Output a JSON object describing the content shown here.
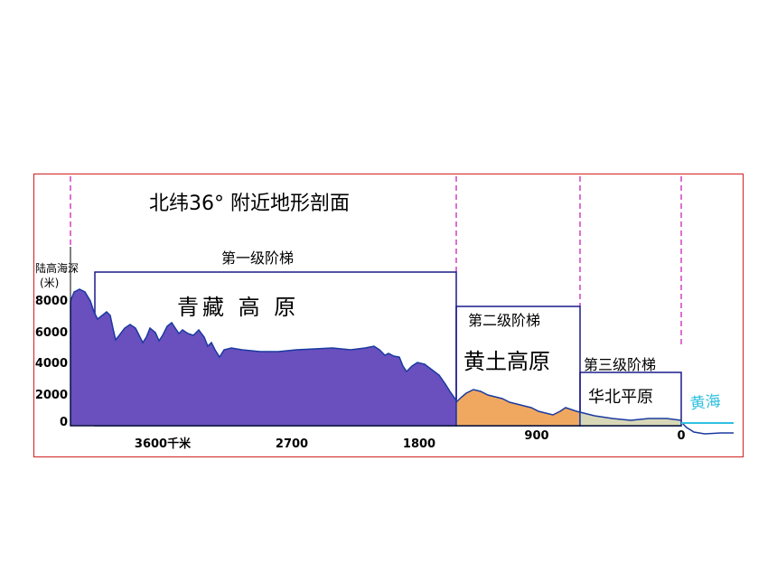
{
  "title": "北纬36° 附近地形剖面",
  "y_axis": {
    "label_line1": "陆高海深",
    "label_line2": "(米)",
    "ticks": [
      "8000",
      "6000",
      "4000",
      "2000",
      "0"
    ]
  },
  "x_axis": {
    "ticks": [
      "3600千米",
      "2700",
      "1800",
      "900",
      "0"
    ]
  },
  "steps": [
    {
      "step_label": "第一级阶梯",
      "region_label": "青藏 高 原",
      "color": "#6a4fbf"
    },
    {
      "step_label": "第二级阶梯",
      "region_label": "黄土高原",
      "color": "#f0a860"
    },
    {
      "step_label": "第三级阶梯",
      "region_label": "华北平原",
      "color": "#d8d8b8"
    }
  ],
  "sea": {
    "label": "黄海",
    "color": "#30c0e0"
  },
  "colors": {
    "frame": "#d02020",
    "box": "#1a1a8a",
    "divider": "#d040c0",
    "axis": "#000000"
  }
}
